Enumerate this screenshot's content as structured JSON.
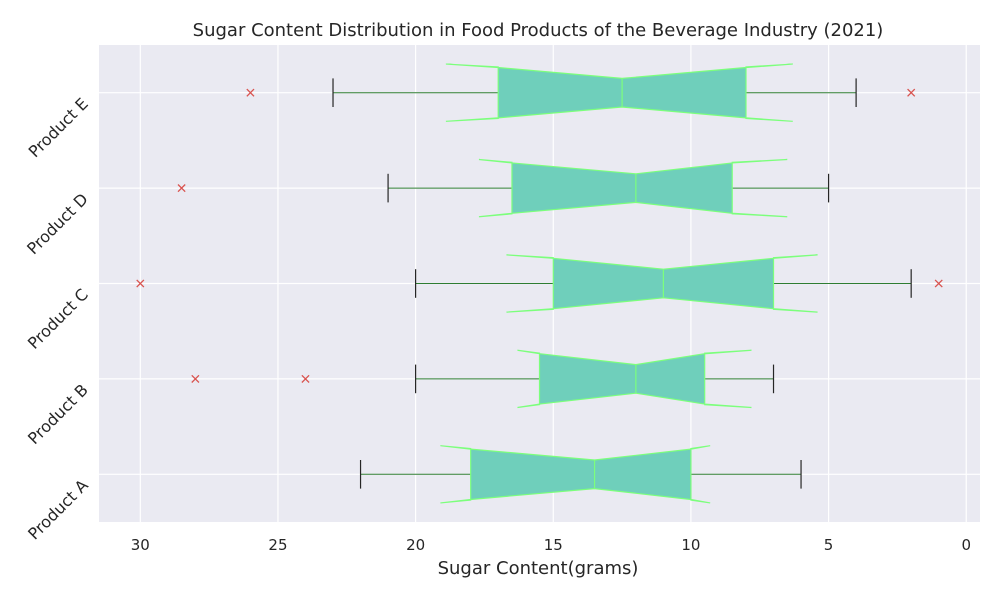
{
  "chart_data": {
    "type": "boxplot",
    "orientation": "horizontal",
    "title": "Sugar Content Distribution in Food Products of the Beverage Industry (2021)",
    "xlabel": "Sugar Content(grams)",
    "ylabel": "",
    "x_axis_inverted": true,
    "xlim": [
      31.5,
      -0.5
    ],
    "xticks": [
      30,
      25,
      20,
      15,
      10,
      5,
      0
    ],
    "notched": true,
    "grid": true,
    "colors": {
      "plot_background": "#EAEAF2",
      "grid": "#FFFFFF",
      "box_fill": "#6FCFBB",
      "box_edge": "#7CFF7C",
      "whisker": "#2E7D32",
      "cap": "#262626",
      "outlier": "#D9534F"
    },
    "categories": [
      "Product A",
      "Product B",
      "Product C",
      "Product D",
      "Product E"
    ],
    "boxes": [
      {
        "label": "Product A",
        "whislo": 6,
        "q1": 10,
        "med": 13.5,
        "q3": 18,
        "whishi": 22,
        "notch_low": 9.3,
        "notch_high": 19.1,
        "fliers": []
      },
      {
        "label": "Product B",
        "whislo": 7,
        "q1": 9.5,
        "med": 12,
        "q3": 15.5,
        "whishi": 20,
        "notch_low": 7.8,
        "notch_high": 16.3,
        "fliers": [
          24,
          28
        ]
      },
      {
        "label": "Product C",
        "whislo": 2,
        "q1": 7,
        "med": 11,
        "q3": 15,
        "whishi": 20,
        "notch_low": 5.4,
        "notch_high": 16.7,
        "fliers": [
          1,
          30
        ]
      },
      {
        "label": "Product D",
        "whislo": 5,
        "q1": 8.5,
        "med": 12,
        "q3": 16.5,
        "whishi": 21,
        "notch_low": 6.5,
        "notch_high": 17.7,
        "fliers": [
          28.5
        ]
      },
      {
        "label": "Product E",
        "whislo": 4,
        "q1": 8,
        "med": 12.5,
        "q3": 17,
        "whishi": 23,
        "notch_low": 6.3,
        "notch_high": 18.9,
        "fliers": [
          2,
          26
        ]
      }
    ]
  }
}
